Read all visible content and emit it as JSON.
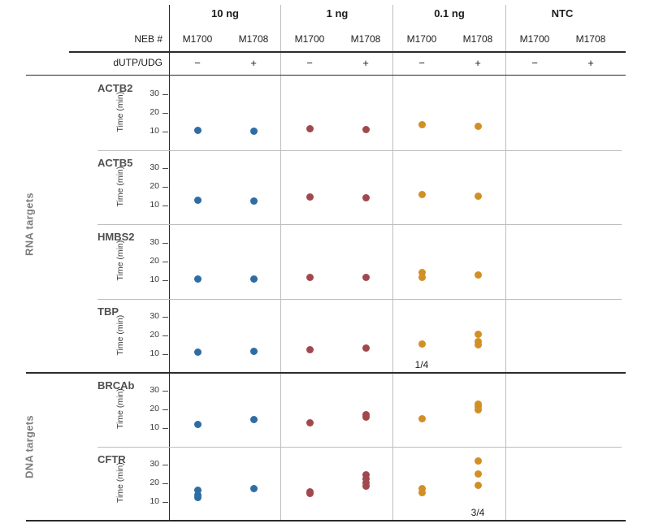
{
  "header": {
    "neb_label": "NEB #",
    "dutp_label": "dUTP/UDG",
    "groups": [
      {
        "label": "10 ng",
        "lanes": [
          {
            "neb": "M1700",
            "dutp": "−"
          },
          {
            "neb": "M1708",
            "dutp": "+"
          }
        ]
      },
      {
        "label": "1 ng",
        "lanes": [
          {
            "neb": "M1700",
            "dutp": "−"
          },
          {
            "neb": "M1708",
            "dutp": "+"
          }
        ]
      },
      {
        "label": "0.1 ng",
        "lanes": [
          {
            "neb": "M1700",
            "dutp": "−"
          },
          {
            "neb": "M1708",
            "dutp": "+"
          }
        ]
      },
      {
        "label": "NTC",
        "lanes": [
          {
            "neb": "M1700",
            "dutp": "−"
          },
          {
            "neb": "M1708",
            "dutp": "+"
          }
        ]
      }
    ]
  },
  "chart_data": {
    "type": "scatter",
    "title": "",
    "ylabel": "Time (min)",
    "yticks": [
      10,
      20,
      30
    ],
    "ylim": [
      5,
      37
    ],
    "unit": "minutes",
    "grid": false,
    "lane_order": [
      "10 ng M1700 −",
      "10 ng M1708 +",
      "1 ng M1700 −",
      "1 ng M1708 +",
      "0.1 ng M1700 −",
      "0.1 ng M1708 +",
      "NTC M1700 −",
      "NTC M1708 +"
    ],
    "group_colors": [
      "#2e6da4",
      "#a1484e",
      "#d28f25",
      null
    ],
    "sections": [
      {
        "label": "RNA targets",
        "rows": [
          {
            "target": "ACTB2",
            "points": [
              [
                10.5
              ],
              [
                10
              ],
              [
                11.5
              ],
              [
                11
              ],
              [
                13.5
              ],
              [
                12.5
              ],
              [],
              []
            ]
          },
          {
            "target": "ACTB5",
            "points": [
              [
                13
              ],
              [
                12.5
              ],
              [
                14.5
              ],
              [
                14
              ],
              [
                16
              ],
              [
                15
              ],
              [],
              []
            ]
          },
          {
            "target": "HMBS2",
            "points": [
              [
                10.5
              ],
              [
                10.5
              ],
              [
                11.5
              ],
              [
                11.5
              ],
              [
                14,
                11.5
              ],
              [
                12.5
              ],
              [],
              []
            ]
          },
          {
            "target": "TBP",
            "points": [
              [
                11
              ],
              [
                11.5
              ],
              [
                12.5
              ],
              [
                13.5
              ],
              [
                15.5
              ],
              [
                20.5,
                17,
                15
              ],
              [],
              []
            ],
            "note": {
              "lane": 4,
              "text": "1/4"
            }
          }
        ]
      },
      {
        "label": "DNA targets",
        "rows": [
          {
            "target": "BRCAb",
            "points": [
              [
                12
              ],
              [
                14.5
              ],
              [
                13
              ],
              [
                17.5,
                16
              ],
              [
                15
              ],
              [
                23,
                21.5,
                20
              ],
              [],
              []
            ]
          },
          {
            "target": "CFTR",
            "points": [
              [
                16.5,
                14,
                12.5
              ],
              [
                17.5
              ],
              [
                15.5,
                14.5
              ],
              [
                24.5,
                22.5,
                20.5,
                18.5
              ],
              [
                17.5,
                15
              ],
              [
                32,
                25,
                19
              ],
              [],
              []
            ],
            "note": {
              "lane": 5,
              "text": "3/4"
            }
          }
        ]
      }
    ]
  }
}
